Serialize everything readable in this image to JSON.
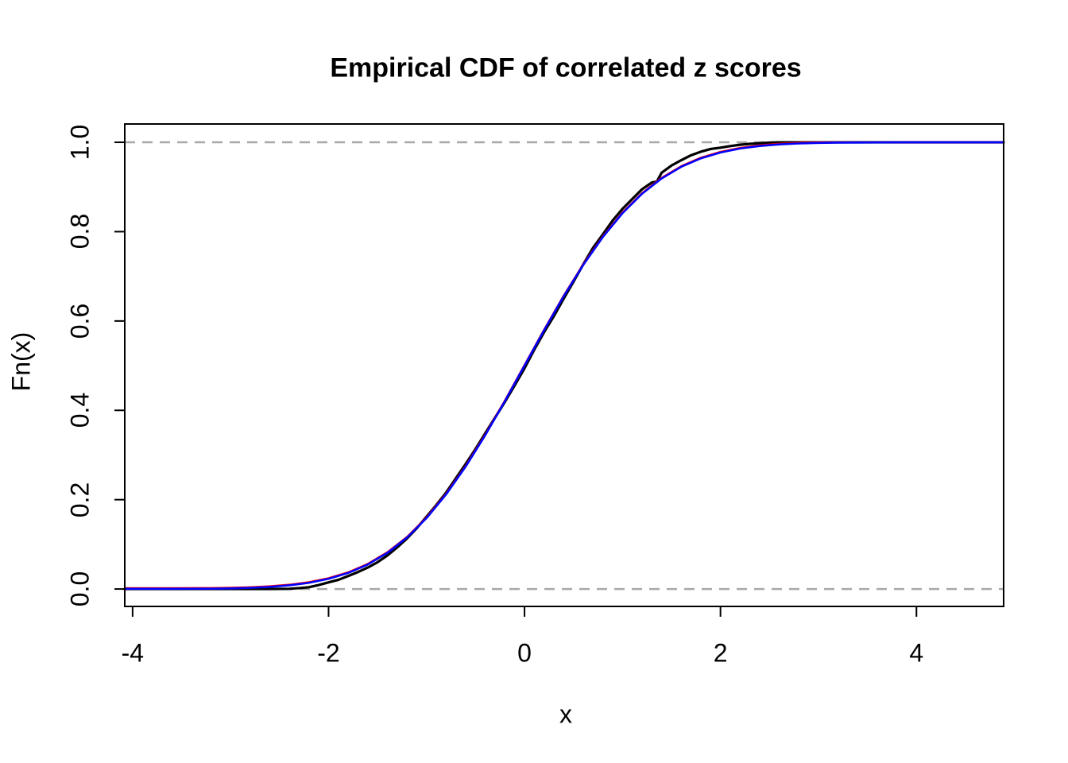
{
  "title": "Empirical CDF of correlated z scores",
  "axes": {
    "xlabel": "x",
    "ylabel": "Fn(x)"
  },
  "chart_data": {
    "type": "line",
    "title": "Empirical CDF of correlated z scores",
    "xlabel": "x",
    "ylabel": "Fn(x)",
    "xlim": [
      -4.08,
      4.89
    ],
    "ylim": [
      -0.039,
      1.041
    ],
    "grid": false,
    "legend": "none",
    "x_ticks": [
      -4,
      -2,
      0,
      2,
      4
    ],
    "x_tick_labels": [
      "-4",
      "-2",
      "0",
      "2",
      "4"
    ],
    "y_ticks": [
      0,
      0.2,
      0.4,
      0.6,
      0.8,
      1.0
    ],
    "y_tick_labels": [
      "0.0",
      "0.2",
      "0.4",
      "0.6",
      "0.8",
      "1.0"
    ],
    "reference_lines": {
      "y": [
        0,
        1
      ],
      "style": "dashed",
      "color": "#a8a8a8",
      "dash": "13 9",
      "width": 2.5
    },
    "series": [
      {
        "name": "empirical-cdf",
        "color": "#000000",
        "width": 3.2,
        "x": [
          -4.08,
          -3.0,
          -2.6,
          -2.4,
          -2.3,
          -2.2,
          -2.1,
          -2.0,
          -1.9,
          -1.8,
          -1.7,
          -1.6,
          -1.5,
          -1.4,
          -1.3,
          -1.2,
          -1.1,
          -1.0,
          -0.9,
          -0.8,
          -0.7,
          -0.6,
          -0.5,
          -0.4,
          -0.3,
          -0.2,
          -0.1,
          0,
          0.1,
          0.2,
          0.3,
          0.4,
          0.5,
          0.6,
          0.7,
          0.8,
          0.9,
          1.0,
          1.1,
          1.2,
          1.3,
          1.35,
          1.4,
          1.5,
          1.6,
          1.7,
          1.8,
          1.9,
          2.0,
          2.1,
          2.2,
          2.3,
          2.4,
          2.5,
          2.6,
          4.89
        ],
        "y": [
          0,
          0,
          0,
          0.0005,
          0.002,
          0.004,
          0.009,
          0.015,
          0.0205,
          0.029,
          0.038,
          0.048,
          0.06,
          0.075,
          0.093,
          0.113,
          0.136,
          0.162,
          0.188,
          0.216,
          0.248,
          0.28,
          0.3135,
          0.349,
          0.384,
          0.419,
          0.456,
          0.494,
          0.536,
          0.575,
          0.611,
          0.65,
          0.688,
          0.727,
          0.764,
          0.794,
          0.825,
          0.851,
          0.873,
          0.895,
          0.91,
          0.912,
          0.932,
          0.948,
          0.96,
          0.971,
          0.979,
          0.985,
          0.988,
          0.9915,
          0.9945,
          0.9965,
          0.998,
          0.9993,
          1.0,
          1.0
        ]
      },
      {
        "name": "normal-cdf-red",
        "color": "#ff0000",
        "width": 2.4,
        "x": [
          -4.08,
          -3.6,
          -3.2,
          -3.0,
          -2.8,
          -2.6,
          -2.4,
          -2.2,
          -2.0,
          -1.8,
          -1.6,
          -1.4,
          -1.2,
          -1.0,
          -0.8,
          -0.6,
          -0.4,
          -0.2,
          0,
          0.2,
          0.4,
          0.6,
          0.8,
          1.0,
          1.2,
          1.4,
          1.6,
          1.8,
          2.0,
          2.2,
          2.4,
          2.6,
          2.8,
          3.0,
          3.2,
          3.6,
          4.0,
          4.89
        ],
        "y": [
          0.002,
          0.002,
          0.0022,
          0.0028,
          0.0041,
          0.0062,
          0.0097,
          0.0154,
          0.0243,
          0.0374,
          0.0563,
          0.0823,
          0.1166,
          0.1602,
          0.2134,
          0.2758,
          0.3461,
          0.4222,
          0.5015,
          0.5808,
          0.6569,
          0.7272,
          0.7896,
          0.8428,
          0.8864,
          0.9207,
          0.9467,
          0.9656,
          0.9787,
          0.9876,
          0.9933,
          0.9968,
          0.9989,
          1.0,
          1.0,
          1.0,
          1.0,
          1.0
        ]
      },
      {
        "name": "normal-cdf-blue",
        "color": "#0000ff",
        "width": 2.6,
        "x": [
          -4.08,
          -3.6,
          -3.2,
          -3.0,
          -2.8,
          -2.6,
          -2.4,
          -2.2,
          -2.0,
          -1.8,
          -1.6,
          -1.4,
          -1.2,
          -1.0,
          -0.8,
          -0.6,
          -0.4,
          -0.2,
          0,
          0.2,
          0.4,
          0.6,
          0.8,
          1.0,
          1.2,
          1.4,
          1.6,
          1.8,
          2.0,
          2.2,
          2.4,
          2.6,
          2.8,
          3.0,
          3.2,
          3.6,
          4.0,
          4.89
        ],
        "y": [
          0.0005,
          0.0005,
          0.0007,
          0.0013,
          0.0026,
          0.0047,
          0.0082,
          0.0139,
          0.0228,
          0.0359,
          0.0548,
          0.0808,
          0.1151,
          0.1587,
          0.2119,
          0.2743,
          0.3446,
          0.4207,
          0.5,
          0.5793,
          0.6554,
          0.7257,
          0.7881,
          0.8413,
          0.8849,
          0.9192,
          0.9452,
          0.9641,
          0.9772,
          0.9861,
          0.9918,
          0.9953,
          0.9974,
          0.9987,
          0.9993,
          0.9998,
          0.9999,
          0.9999
        ]
      }
    ]
  }
}
